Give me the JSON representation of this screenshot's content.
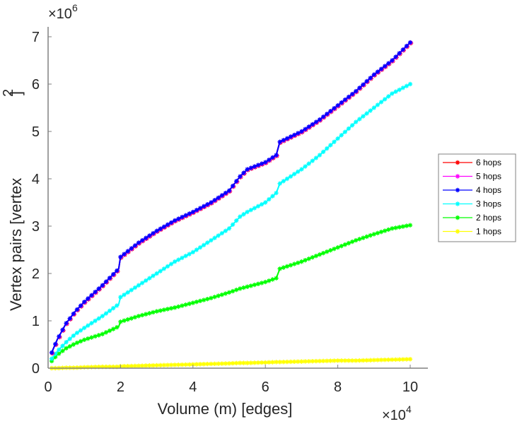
{
  "chart_data": {
    "type": "line",
    "title": "",
    "xlabel": "Volume (m) [edges]",
    "ylabel": "Vertex pairs [vertex",
    "ylabel_superscript": "2",
    "ylabel_close": "]",
    "x_multiplier": "×10",
    "x_multiplier_exp": "4",
    "y_multiplier": "×10",
    "y_multiplier_exp": "6",
    "xlim": [
      0,
      10.5
    ],
    "ylim": [
      0,
      7.2
    ],
    "xticks": [
      "0",
      "2",
      "4",
      "6",
      "8",
      "10"
    ],
    "yticks": [
      "0",
      "1",
      "2",
      "3",
      "4",
      "5",
      "6",
      "7"
    ],
    "grid": false,
    "legend_position": "right",
    "legend": [
      "6 hops",
      "5 hops",
      "4 hops",
      "3 hops",
      "2 hops",
      "1 hops"
    ],
    "x": [
      0.1,
      0.25,
      0.5,
      0.75,
      1.0,
      1.5,
      1.95,
      2.0,
      2.5,
      3.0,
      3.5,
      4.0,
      4.5,
      5.0,
      5.3,
      5.5,
      6.0,
      6.3,
      6.4,
      7.0,
      7.5,
      8.0,
      8.5,
      9.0,
      9.5,
      10.0
    ],
    "series": [
      {
        "name": "6 hops",
        "color": "#ff0000",
        "values": [
          0.33,
          0.6,
          0.95,
          1.2,
          1.4,
          1.75,
          2.1,
          2.35,
          2.65,
          2.9,
          3.12,
          3.3,
          3.5,
          3.75,
          4.05,
          4.2,
          4.35,
          4.5,
          4.78,
          5.0,
          5.25,
          5.55,
          5.85,
          6.2,
          6.5,
          6.88
        ]
      },
      {
        "name": "5 hops",
        "color": "#ff00ff",
        "values": [
          0.33,
          0.6,
          0.95,
          1.2,
          1.4,
          1.75,
          2.1,
          2.35,
          2.65,
          2.9,
          3.12,
          3.3,
          3.5,
          3.75,
          4.05,
          4.2,
          4.35,
          4.5,
          4.78,
          5.0,
          5.25,
          5.55,
          5.85,
          6.2,
          6.5,
          6.88
        ]
      },
      {
        "name": "4 hops",
        "color": "#0000ff",
        "values": [
          0.33,
          0.6,
          0.95,
          1.2,
          1.4,
          1.75,
          2.1,
          2.35,
          2.65,
          2.9,
          3.12,
          3.3,
          3.5,
          3.75,
          4.05,
          4.2,
          4.35,
          4.5,
          4.78,
          5.0,
          5.25,
          5.55,
          5.85,
          6.2,
          6.5,
          6.88
        ]
      },
      {
        "name": "3 hops",
        "color": "#00ffff",
        "values": [
          0.2,
          0.35,
          0.55,
          0.72,
          0.85,
          1.1,
          1.35,
          1.5,
          1.75,
          2.0,
          2.25,
          2.45,
          2.7,
          2.95,
          3.2,
          3.3,
          3.5,
          3.7,
          3.9,
          4.2,
          4.5,
          4.85,
          5.2,
          5.5,
          5.8,
          6.0
        ]
      },
      {
        "name": "2 hops",
        "color": "#00ff00",
        "values": [
          0.15,
          0.28,
          0.42,
          0.52,
          0.6,
          0.72,
          0.88,
          0.98,
          1.1,
          1.2,
          1.28,
          1.38,
          1.48,
          1.6,
          1.68,
          1.72,
          1.82,
          1.9,
          2.1,
          2.25,
          2.4,
          2.55,
          2.7,
          2.83,
          2.95,
          3.02
        ]
      },
      {
        "name": "1 hops",
        "color": "#ffff00",
        "values": [
          0.0,
          0.0,
          0.01,
          0.01,
          0.02,
          0.03,
          0.03,
          0.04,
          0.05,
          0.06,
          0.07,
          0.08,
          0.09,
          0.1,
          0.11,
          0.11,
          0.12,
          0.13,
          0.13,
          0.14,
          0.15,
          0.16,
          0.16,
          0.17,
          0.18,
          0.19
        ]
      }
    ]
  }
}
